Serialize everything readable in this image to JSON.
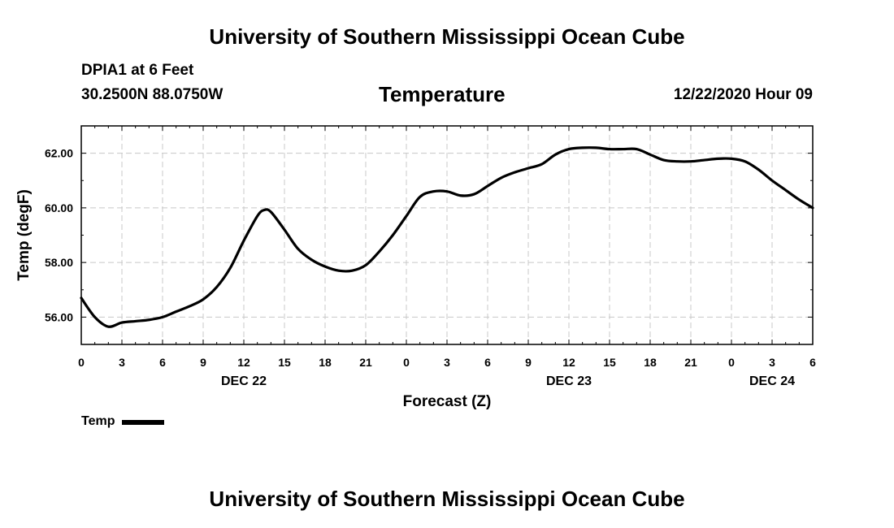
{
  "header": {
    "institution": "University of Southern Mississippi Ocean Cube",
    "station": "DPIA1 at 6 Feet",
    "coordinates": "30.2500N 88.0750W",
    "chart_title": "Temperature",
    "date_hour": "12/22/2020 Hour 09"
  },
  "footer": {
    "institution": "University of Southern Mississippi Ocean Cube"
  },
  "legend": {
    "label": "Temp"
  },
  "colors": {
    "line": "#000000",
    "grid": "#c8c8c8",
    "background": "#ffffff"
  },
  "chart_data": {
    "type": "line",
    "title": "Temperature",
    "xlabel": "Forecast (Z)",
    "ylabel": "Temp (degF)",
    "x_unit": "hours since 2020-12-22 00Z",
    "xlim": [
      0,
      54
    ],
    "ylim": [
      55,
      63
    ],
    "grid": true,
    "legend_position": "bottom-left",
    "x_ticks": [
      0,
      3,
      6,
      9,
      12,
      15,
      18,
      21,
      24,
      27,
      30,
      33,
      36,
      39,
      42,
      45,
      48,
      51,
      54
    ],
    "x_tick_labels": [
      "0",
      "3",
      "6",
      "9",
      "12",
      "15",
      "18",
      "21",
      "0",
      "3",
      "6",
      "9",
      "12",
      "15",
      "18",
      "21",
      "0",
      "3",
      "6"
    ],
    "day_labels": [
      {
        "x": 12,
        "label": "DEC 22"
      },
      {
        "x": 36,
        "label": "DEC 23"
      },
      {
        "x": 51,
        "label": "DEC 24"
      }
    ],
    "y_ticks": [
      56,
      58,
      60,
      62
    ],
    "y_tick_labels": [
      "56.00",
      "58.00",
      "60.00",
      "62.00"
    ],
    "series": [
      {
        "name": "Temp",
        "x": [
          0,
          1,
          2,
          3,
          4,
          5,
          6,
          7,
          8,
          9,
          10,
          11,
          12,
          13,
          13.5,
          14,
          15,
          16,
          17,
          18,
          19,
          20,
          21,
          22,
          23,
          24,
          25,
          26,
          27,
          28,
          29,
          30,
          31,
          32,
          33,
          34,
          35,
          36,
          37,
          38,
          39,
          40,
          41,
          42,
          43,
          44,
          45,
          46,
          47,
          48,
          49,
          50,
          51,
          52,
          53,
          54
        ],
        "values": [
          56.7,
          56.0,
          55.65,
          55.8,
          55.85,
          55.9,
          56.0,
          56.2,
          56.4,
          56.65,
          57.1,
          57.8,
          58.8,
          59.7,
          59.92,
          59.85,
          59.2,
          58.5,
          58.1,
          57.85,
          57.7,
          57.7,
          57.9,
          58.4,
          59.0,
          59.7,
          60.4,
          60.6,
          60.6,
          60.45,
          60.5,
          60.8,
          61.1,
          61.3,
          61.45,
          61.6,
          61.95,
          62.15,
          62.2,
          62.2,
          62.15,
          62.15,
          62.15,
          61.95,
          61.75,
          61.7,
          61.7,
          61.75,
          61.8,
          61.8,
          61.7,
          61.4,
          61.0,
          60.65,
          60.3,
          60.0
        ]
      }
    ]
  }
}
